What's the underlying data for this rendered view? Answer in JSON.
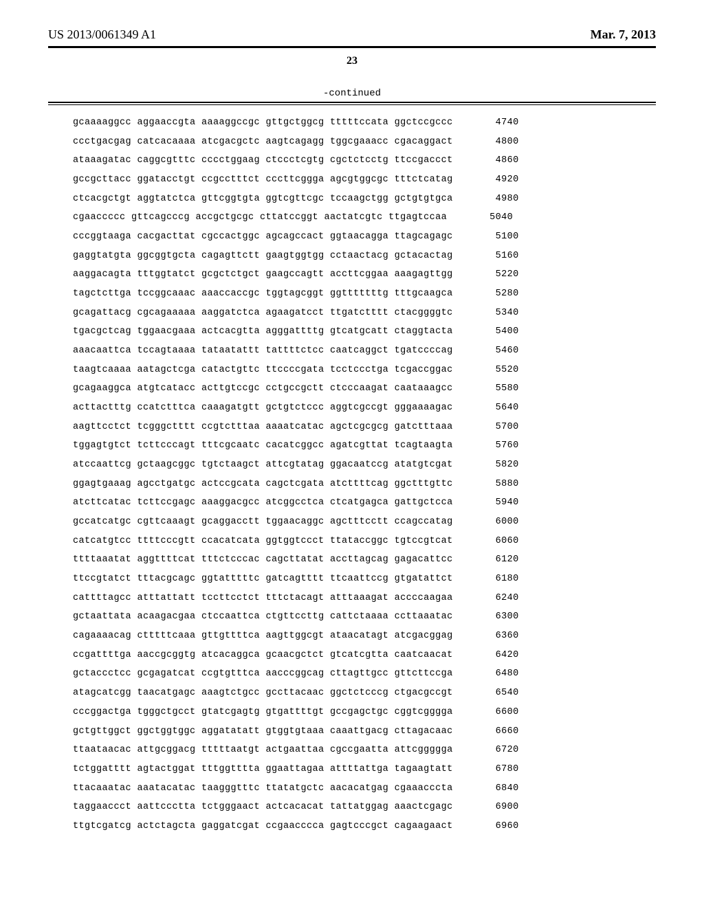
{
  "header": {
    "publication_number": "US 2013/0061349 A1",
    "date": "Mar. 7, 2013"
  },
  "page_number": "23",
  "continued_label": "-continued",
  "sequence": {
    "rows": [
      {
        "groups": "gcaaaaggcc aggaaccgta aaaaggccgc gttgctggcg tttttccata ggctccgccc",
        "pos": "4740"
      },
      {
        "groups": "ccctgacgag catcacaaaa atcgacgctc aagtcagagg tggcgaaacc cgacaggact",
        "pos": "4800"
      },
      {
        "groups": "ataaagatac caggcgtttc cccctggaag ctccctcgtg cgctctcctg ttccgaccct",
        "pos": "4860"
      },
      {
        "groups": "gccgcttacc ggatacctgt ccgcctttct cccttcggga agcgtggcgc tttctcatag",
        "pos": "4920"
      },
      {
        "groups": "ctcacgctgt aggtatctca gttcggtgta ggtcgttcgc tccaagctgg gctgtgtgca",
        "pos": "4980"
      },
      {
        "groups": "cgaaccccc gttcagcccg accgctgcgc cttatccggt aactatcgtc ttgagtccaa",
        "pos": "5040"
      },
      {
        "groups": "cccggtaaga cacgacttat cgccactggc agcagccact ggtaacagga ttagcagagc",
        "pos": "5100"
      },
      {
        "groups": "gaggtatgta ggcggtgcta cagagttctt gaagtggtgg cctaactacg gctacactag",
        "pos": "5160"
      },
      {
        "groups": "aaggacagta tttggtatct gcgctctgct gaagccagtt accttcggaa aaagagttgg",
        "pos": "5220"
      },
      {
        "groups": "tagctcttga tccggcaaac aaaccaccgc tggtagcggt ggtttttttg tttgcaagca",
        "pos": "5280"
      },
      {
        "groups": "gcagattacg cgcagaaaaa aaggatctca agaagatcct ttgatctttt ctacggggtc",
        "pos": "5340"
      },
      {
        "groups": "tgacgctcag tggaacgaaa actcacgtta agggattttg gtcatgcatt ctaggtacta",
        "pos": "5400"
      },
      {
        "groups": "aaacaattca tccagtaaaa tataatattt tattttctcc caatcaggct tgatccccag",
        "pos": "5460"
      },
      {
        "groups": "taagtcaaaa aatagctcga catactgttc ttccccgata tcctccctga tcgaccggac",
        "pos": "5520"
      },
      {
        "groups": "gcagaaggca atgtcatacc acttgtccgc cctgccgctt ctcccaagat caataaagcc",
        "pos": "5580"
      },
      {
        "groups": "acttactttg ccatctttca caaagatgtt gctgtctccc aggtcgccgt gggaaaagac",
        "pos": "5640"
      },
      {
        "groups": "aagttcctct tcgggctttt ccgtctttaa aaaatcatac agctcgcgcg gatctttaaa",
        "pos": "5700"
      },
      {
        "groups": "tggagtgtct tcttcccagt tttcgcaatc cacatcggcc agatcgttat tcagtaagta",
        "pos": "5760"
      },
      {
        "groups": "atccaattcg gctaagcggc tgtctaagct attcgtatag ggacaatccg atatgtcgat",
        "pos": "5820"
      },
      {
        "groups": "ggagtgaaag agcctgatgc actccgcata cagctcgata atcttttcag ggctttgttc",
        "pos": "5880"
      },
      {
        "groups": "atcttcatac tcttccgagc aaaggacgcc atcggcctca ctcatgagca gattgctcca",
        "pos": "5940"
      },
      {
        "groups": "gccatcatgc cgttcaaagt gcaggacctt tggaacaggc agctttcctt ccagccatag",
        "pos": "6000"
      },
      {
        "groups": "catcatgtcc ttttcccgtt ccacatcata ggtggtccct ttataccggc tgtccgtcat",
        "pos": "6060"
      },
      {
        "groups": "ttttaaatat aggttttcat tttctcccac cagcttatat accttagcag gagacattcc",
        "pos": "6120"
      },
      {
        "groups": "ttccgtatct tttacgcagc ggtatttttc gatcagtttt ttcaattccg gtgatattct",
        "pos": "6180"
      },
      {
        "groups": "cattttagcc atttattatt tccttcctct tttctacagt atttaaagat accccaagaa",
        "pos": "6240"
      },
      {
        "groups": "gctaattata acaagacgaa ctccaattca ctgttccttg cattctaaaa ccttaaatac",
        "pos": "6300"
      },
      {
        "groups": "cagaaaacag ctttttcaaa gttgttttca aagttggcgt ataacatagt atcgacggag",
        "pos": "6360"
      },
      {
        "groups": "ccgattttga aaccgcggtg atcacaggca gcaacgctct gtcatcgtta caatcaacat",
        "pos": "6420"
      },
      {
        "groups": "gctaccctcc gcgagatcat ccgtgtttca aacccggcag cttagttgcc gttcttccga",
        "pos": "6480"
      },
      {
        "groups": "atagcatcgg taacatgagc aaagtctgcc gccttacaac ggctctcccg ctgacgccgt",
        "pos": "6540"
      },
      {
        "groups": "cccggactga tgggctgcct gtatcgagtg gtgattttgt gccgagctgc cggtcgggga",
        "pos": "6600"
      },
      {
        "groups": "gctgttggct ggctggtggc aggatatatt gtggtgtaaa caaattgacg cttagacaac",
        "pos": "6660"
      },
      {
        "groups": "ttaataacac attgcggacg tttttaatgt actgaattaa cgccgaatta attcgggggа",
        "pos": "6720"
      },
      {
        "groups": "tctggatttt agtactggat tttggtttta ggaattagaa attttattga tagaagtatt",
        "pos": "6780"
      },
      {
        "groups": "ttacaaatac aaatacatac taagggtttc ttatatgctc aacacatgag cgaaacccta",
        "pos": "6840"
      },
      {
        "groups": "taggaaccct aattccctta tctgggaact actcacacat tattatggag aaactcgagc",
        "pos": "6900"
      },
      {
        "groups": "ttgtcgatcg actctagcta gaggatcgat ccgaacccca gagtcccgct cagaagaact",
        "pos": "6960"
      }
    ]
  }
}
